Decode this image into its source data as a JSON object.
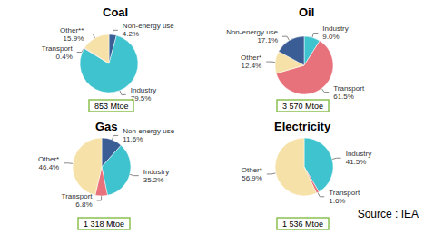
{
  "chart_data": [
    {
      "type": "pie",
      "title": "Coal",
      "categories": [
        "Non-energy use",
        "Industry",
        "Transport",
        "Other**"
      ],
      "values": [
        4.2,
        79.5,
        0.4,
        15.9
      ],
      "value_labels": [
        "4.2%",
        "79.5%",
        "0.4%",
        "15.9%"
      ],
      "colors": [
        "#3b5d96",
        "#3ec3cf",
        "#e8727c",
        "#f6e2a8"
      ],
      "data_labels": true,
      "annotation": "853 Mtoe"
    },
    {
      "type": "pie",
      "title": "Oil",
      "categories": [
        "Industry",
        "Transport",
        "Other*",
        "Non-energy use"
      ],
      "values": [
        9.0,
        61.5,
        12.4,
        17.1
      ],
      "value_labels": [
        "9.0%",
        "61.5%",
        "12.4%",
        "17.1%"
      ],
      "colors": [
        "#3ec3cf",
        "#e8727c",
        "#f6e2a8",
        "#3b5d96"
      ],
      "data_labels": true,
      "annotation": "3 570 Mtoe"
    },
    {
      "type": "pie",
      "title": "Gas",
      "categories": [
        "Non-energy use",
        "Industry",
        "Transport",
        "Other*"
      ],
      "values": [
        11.6,
        35.2,
        6.8,
        46.4
      ],
      "value_labels": [
        "11.6%",
        "35.2%",
        "6.8%",
        "46.4%"
      ],
      "colors": [
        "#3b5d96",
        "#3ec3cf",
        "#e8727c",
        "#f6e2a8"
      ],
      "data_labels": true,
      "annotation": "1 318 Mtoe"
    },
    {
      "type": "pie",
      "title": "Electricity",
      "categories": [
        "Industry",
        "Transport",
        "Other*"
      ],
      "values": [
        41.5,
        1.6,
        56.9
      ],
      "value_labels": [
        "41.5%",
        "1.6%",
        "56.9%"
      ],
      "colors": [
        "#3ec3cf",
        "#e8727c",
        "#f6e2a8"
      ],
      "data_labels": true,
      "annotation": "1 536 Mtoe"
    }
  ],
  "source": "Source : IEA"
}
